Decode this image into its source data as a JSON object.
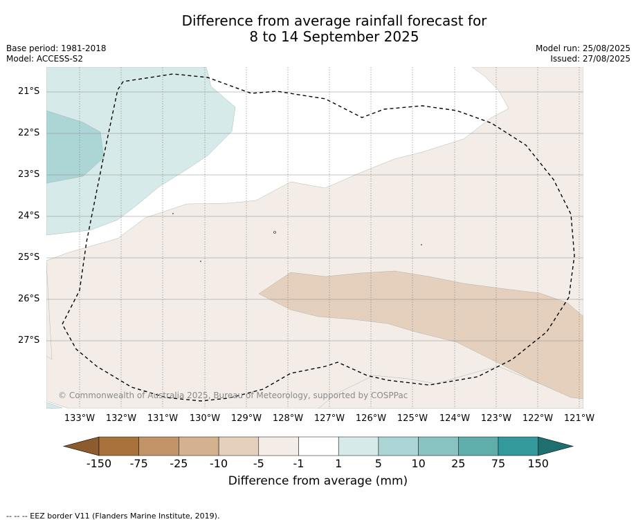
{
  "title": {
    "line1": "Difference from average rainfall forecast for",
    "line2": "8 to 14 September 2025"
  },
  "meta": {
    "base_period": "Base period: 1981-2018",
    "model": "Model: ACCESS-S2",
    "model_run": "Model run: 25/08/2025",
    "issued": "Issued: 27/08/2025"
  },
  "map": {
    "lat_labels": [
      "21°S",
      "22°S",
      "23°S",
      "24°S",
      "25°S",
      "26°S",
      "27°S"
    ],
    "lon_labels": [
      "133°W",
      "132°W",
      "131°W",
      "130°W",
      "129°W",
      "128°W",
      "127°W",
      "126°W",
      "125°W",
      "124°W",
      "123°W",
      "122°W",
      "121°W"
    ],
    "extent": {
      "lon_west": -133.8,
      "lon_east": -120.9,
      "lat_north": -20.4,
      "lat_south": -28.6
    },
    "copyright": "© Commonwealth of Australia 2025, Bureau of Meteorology, supported by COSPPac"
  },
  "legend": {
    "ticks": [
      "-150",
      "-75",
      "-25",
      "-10",
      "-5",
      "-1",
      "1",
      "5",
      "10",
      "25",
      "75",
      "150"
    ],
    "label": "Difference from average (mm)",
    "colors": {
      "lt-150": "#8c5b2e",
      "-150to-75": "#a8723d",
      "-75to-25": "#c29468",
      "-25to-10": "#d4b28f",
      "-10to-5": "#e4d0bd",
      "-5to-1": "#f4ede7",
      "-1to1": "#ffffff",
      "1to5": "#d6eae9",
      "5to10": "#acd6d5",
      "10to25": "#88c3c2",
      "25to75": "#5faeac",
      "75to150": "#33999a",
      "gt150": "#1f6f70"
    }
  },
  "footnote": "--  --  -- EEZ border V11 (Flanders Marine Institute, 2019)."
}
